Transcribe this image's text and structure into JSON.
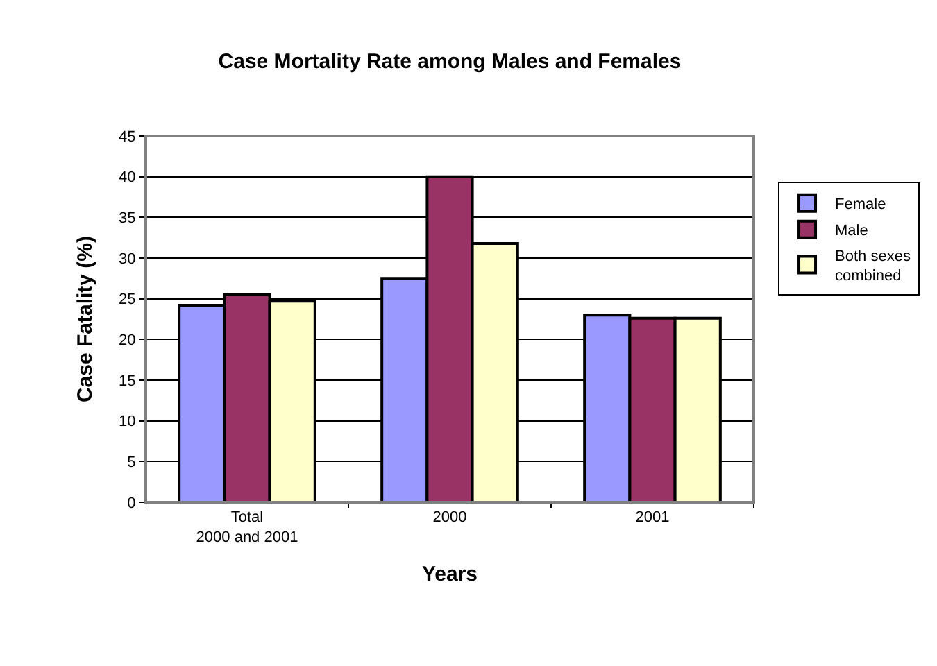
{
  "chart_data": {
    "type": "bar",
    "title": "Case Mortality Rate among Males and Females",
    "xlabel": "Years",
    "ylabel": "Case Fatality (%)",
    "categories": [
      "Total\n2000 and 2001",
      "2000",
      "2001"
    ],
    "series": [
      {
        "name": "Female",
        "color": "#9999ff",
        "values": [
          24.2,
          27.5,
          23.0
        ]
      },
      {
        "name": "Male",
        "color": "#993366",
        "values": [
          25.5,
          40.0,
          22.6
        ]
      },
      {
        "name": "Both sexes\ncombined",
        "color": "#ffffcc",
        "values": [
          24.7,
          31.8,
          22.6
        ]
      }
    ],
    "ylim": [
      0,
      45
    ],
    "yticks": [
      0,
      5,
      10,
      15,
      20,
      25,
      30,
      35,
      40,
      45
    ],
    "grid": "y",
    "legend": "right"
  }
}
